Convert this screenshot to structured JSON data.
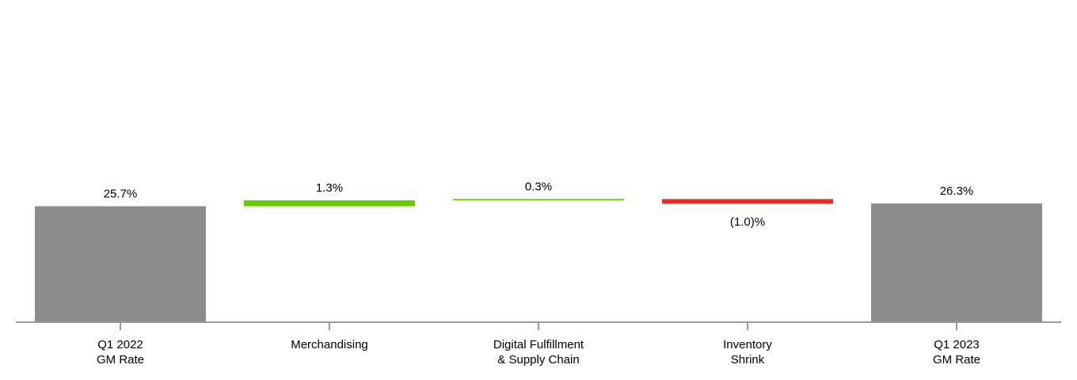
{
  "chart_data": {
    "type": "bar",
    "subtype": "waterfall",
    "categories": [
      "Q1 2022\nGM Rate",
      "Merchandising",
      "Digital Fulfillment\n& Supply Chain",
      "Inventory\nShrink",
      "Q1 2023\nGM Rate"
    ],
    "bars": [
      {
        "kind": "total",
        "start": 0,
        "end": 25.7,
        "label": "25.7%",
        "label_position": "above"
      },
      {
        "kind": "delta",
        "start": 25.7,
        "end": 27.0,
        "label": "1.3%",
        "label_position": "above"
      },
      {
        "kind": "delta",
        "start": 27.0,
        "end": 27.3,
        "label": "0.3%",
        "label_position": "above"
      },
      {
        "kind": "delta",
        "start": 27.3,
        "end": 26.3,
        "label": "(1.0)%",
        "label_position": "below"
      },
      {
        "kind": "total",
        "start": 0,
        "end": 26.3,
        "label": "26.3%",
        "label_position": "above"
      }
    ],
    "ylim": [
      0,
      32
    ],
    "grid": false,
    "legend": "none",
    "colors": {
      "total": "#8c8c8c",
      "increase": "#66cc00",
      "decrease": "#ee2a24",
      "axis": "#999999"
    }
  }
}
